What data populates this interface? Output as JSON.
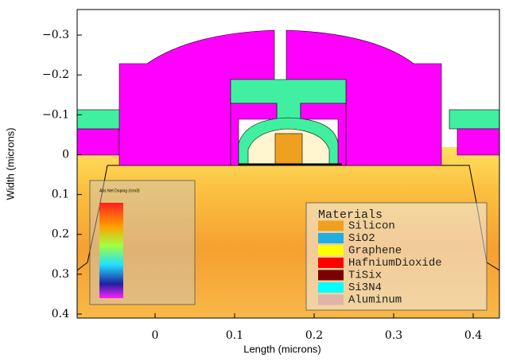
{
  "chart_data": {
    "type": "structure",
    "x_label": "Length (microns)",
    "y_label": "Width (microns)",
    "xlim": [
      -0.098,
      0.433
    ],
    "ylim": [
      0.41,
      -0.364
    ],
    "xticks": [
      0,
      0.1,
      0.2,
      0.3,
      0.4
    ],
    "yticks": [
      {
        "value": -0.3,
        "label": "−0.3"
      },
      {
        "value": -0.2,
        "label": "−0.2"
      },
      {
        "value": -0.1,
        "label": "−0.1"
      },
      0,
      0.1,
      0.2,
      0.3,
      0.4
    ],
    "doping_legend_title": "Abs Net Doping (/cm3)",
    "legend": {
      "title": "Materials",
      "items": [
        {
          "name": "Silicon",
          "color": "#f0a020"
        },
        {
          "name": "SiO2",
          "color": "#1eaee6"
        },
        {
          "name": "Graphene",
          "color": "#ffff00"
        },
        {
          "name": "HafniumDioxide",
          "color": "#ff0000"
        },
        {
          "name": "TiSix",
          "color": "#7a0000"
        },
        {
          "name": "Si3N4",
          "color": "#00ffff"
        },
        {
          "name": "Aluminum",
          "color": "#e0b4a8"
        }
      ]
    }
  }
}
